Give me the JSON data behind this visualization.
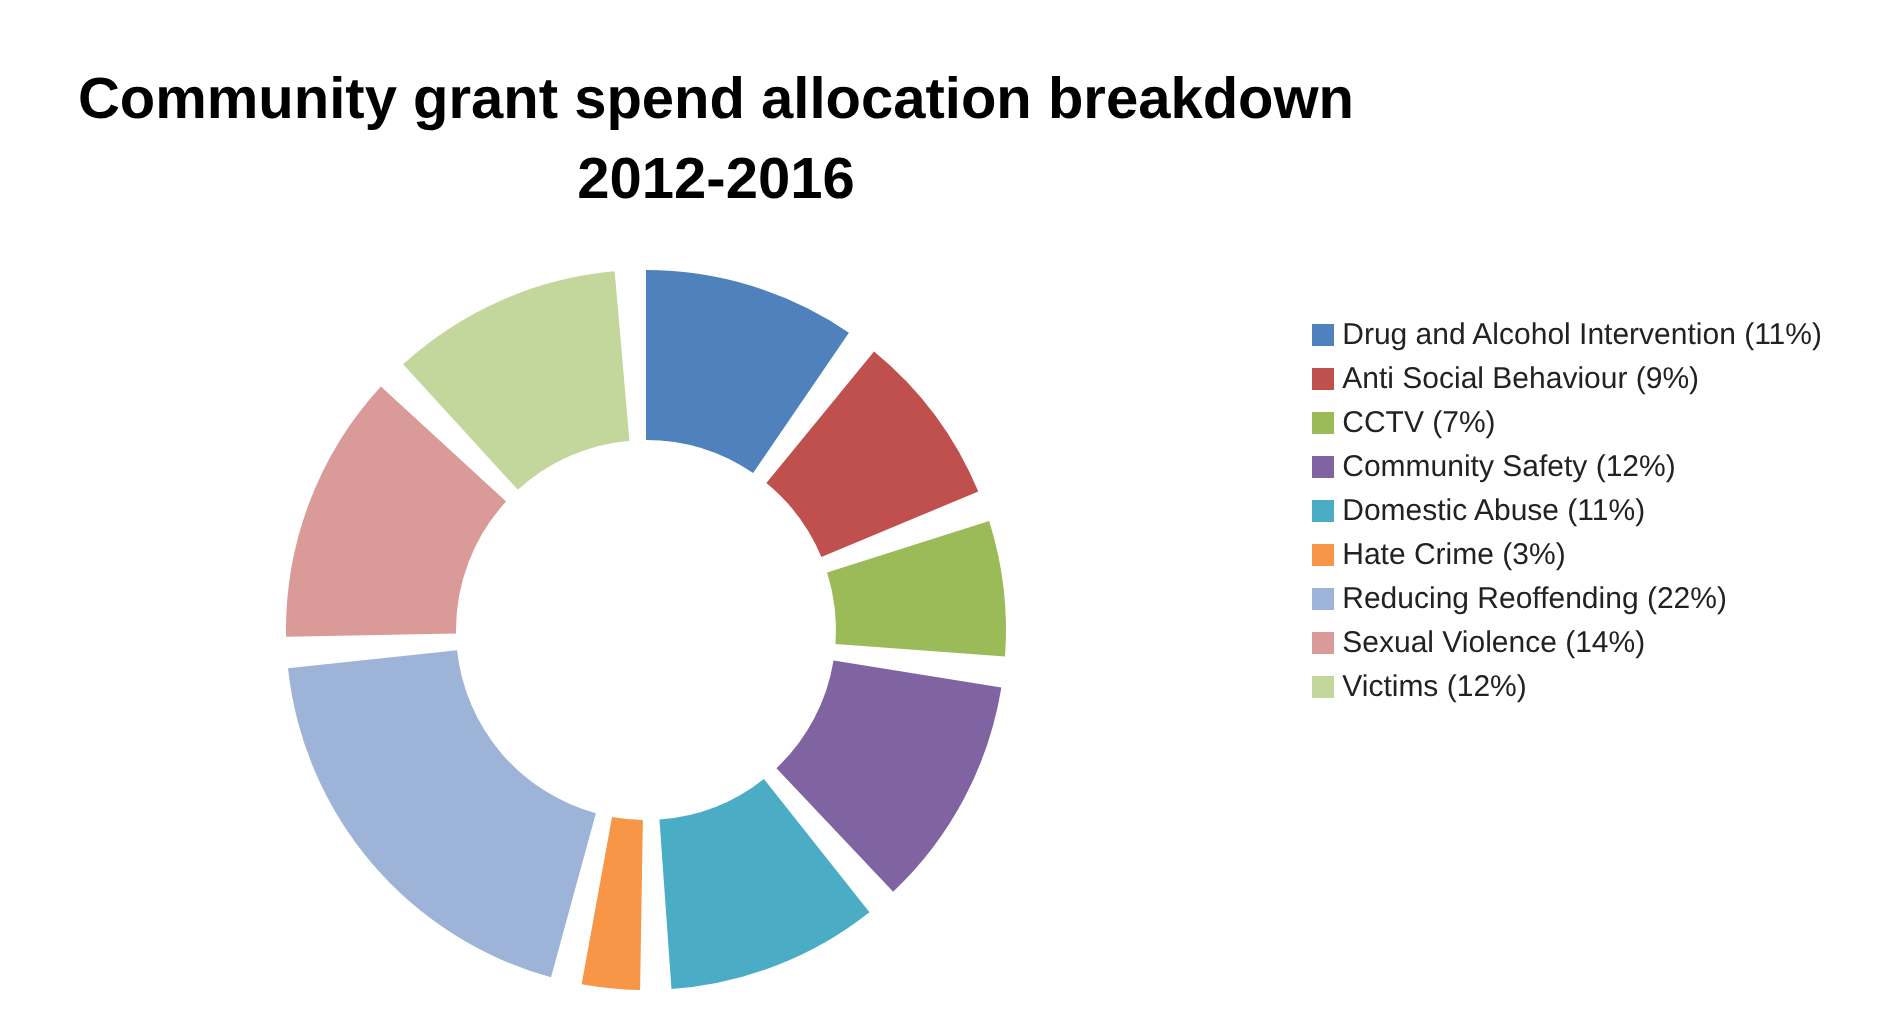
{
  "chart_data": {
    "type": "donut",
    "title": "Community grant spend allocation breakdown 2012-2016",
    "categories": [
      "Drug and Alcohol Intervention (11%)",
      "Anti Social Behaviour (9%)",
      "CCTV (7%)",
      "Community Safety (12%)",
      "Domestic Abuse (11%)",
      "Hate Crime (3%)",
      "Reducing Reoffending (22%)",
      "Sexual Violence (14%)",
      "Victims (12%)"
    ],
    "values": [
      11,
      9,
      7,
      12,
      11,
      3,
      22,
      14,
      12
    ],
    "colors": [
      "#4f81bd",
      "#c0504d",
      "#9bbb59",
      "#8064a2",
      "#4bacc6",
      "#f79646",
      "#9db3d8",
      "#d99a98",
      "#c3d69b"
    ],
    "legend": "right"
  }
}
